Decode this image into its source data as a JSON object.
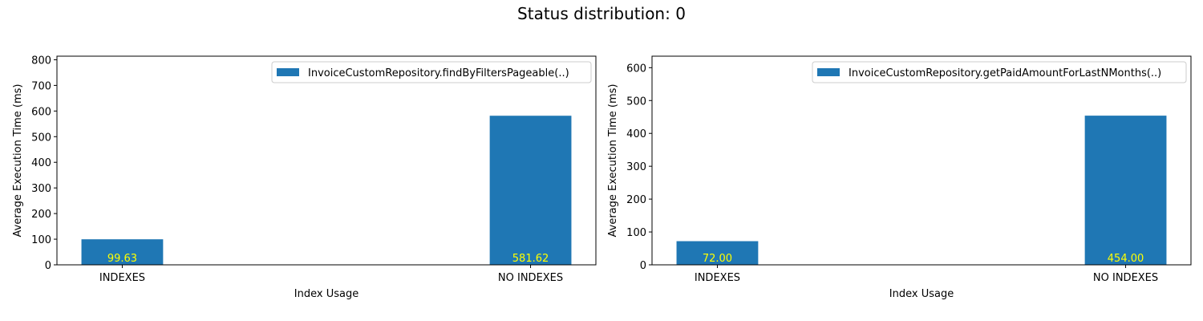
{
  "figure": {
    "suptitle": "Status distribution: 0"
  },
  "chart_data": [
    {
      "type": "bar",
      "categories": [
        "INDEXES",
        "NO INDEXES"
      ],
      "series": [
        {
          "name": "InvoiceCustomRepository.findByFiltersPageable(..)",
          "values": [
            99.63,
            581.62
          ],
          "color": "#1f77b4"
        }
      ],
      "value_labels": [
        "99.63",
        "581.62"
      ],
      "value_label_color": "#ffff00",
      "xlabel": "Index Usage",
      "ylabel": "Average Execution Time (ms)",
      "ylim": [
        0,
        814
      ],
      "yticks": [
        0,
        100,
        200,
        300,
        400,
        500,
        600,
        700,
        800
      ],
      "legend": "top-right",
      "grid": false
    },
    {
      "type": "bar",
      "categories": [
        "INDEXES",
        "NO INDEXES"
      ],
      "series": [
        {
          "name": "InvoiceCustomRepository.getPaidAmountForLastNMonths(..)",
          "values": [
            72.0,
            454.0
          ],
          "color": "#1f77b4"
        }
      ],
      "value_labels": [
        "72.00",
        "454.00"
      ],
      "value_label_color": "#ffff00",
      "xlabel": "Index Usage",
      "ylabel": "Average Execution Time (ms)",
      "ylim": [
        0,
        635
      ],
      "yticks": [
        0,
        100,
        200,
        300,
        400,
        500,
        600
      ],
      "legend": "top-right",
      "grid": false
    }
  ]
}
